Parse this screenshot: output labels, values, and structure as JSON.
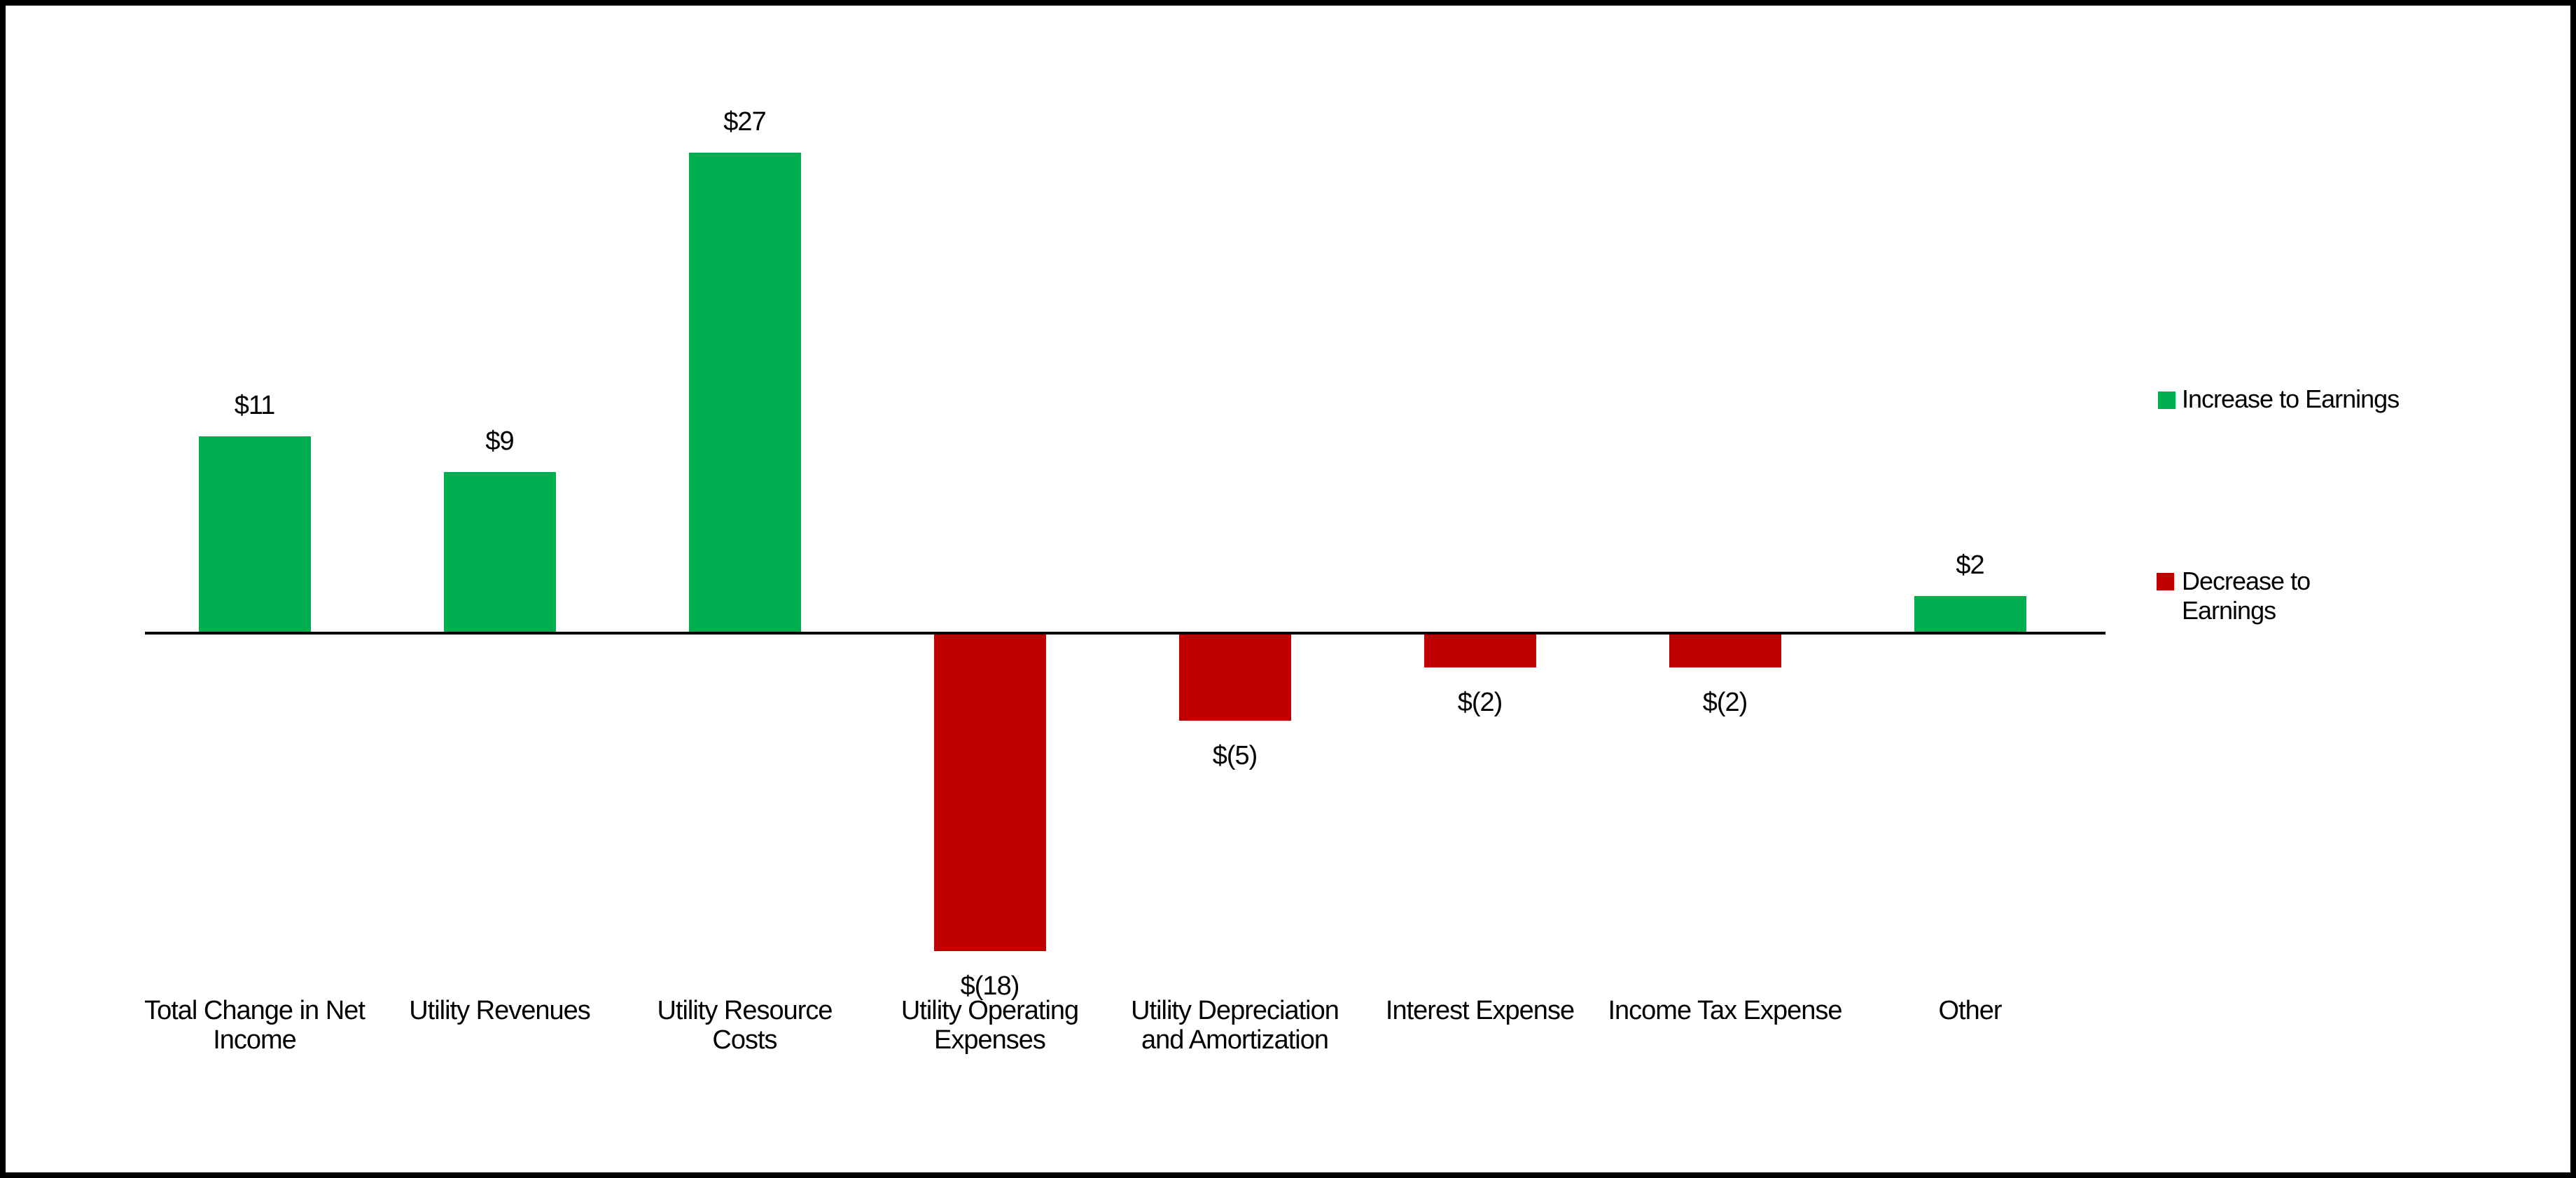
{
  "chart_data": {
    "type": "bar",
    "categories": [
      "Total Change in Net Income",
      "Utility Revenues",
      "Utility Resource Costs",
      "Utility Operating Expenses",
      "Utility Depreciation and Amortization",
      "Interest Expense",
      "Income Tax Expense",
      "Other"
    ],
    "values": [
      11,
      9,
      27,
      -18,
      -5,
      -2,
      -2,
      2
    ],
    "data_labels": [
      "$11",
      "$9",
      "$27",
      "$(18)",
      "$(5)",
      "$(2)",
      "$(2)",
      "$2"
    ],
    "title": "",
    "xlabel": "",
    "ylabel": "",
    "ylim": [
      -18,
      27
    ],
    "grid": false,
    "baseline": 0,
    "positive_color": "#00AE50",
    "negative_color": "#C00000",
    "axis_color": "#000000",
    "legend_position": "right",
    "legend": [
      {
        "label": "Increase to Earnings",
        "color": "#00AE50"
      },
      {
        "label": "Decrease to Earnings",
        "color": "#C00000"
      }
    ]
  },
  "frame": {
    "border_color": "#000000",
    "background_color": "#ffffff"
  }
}
